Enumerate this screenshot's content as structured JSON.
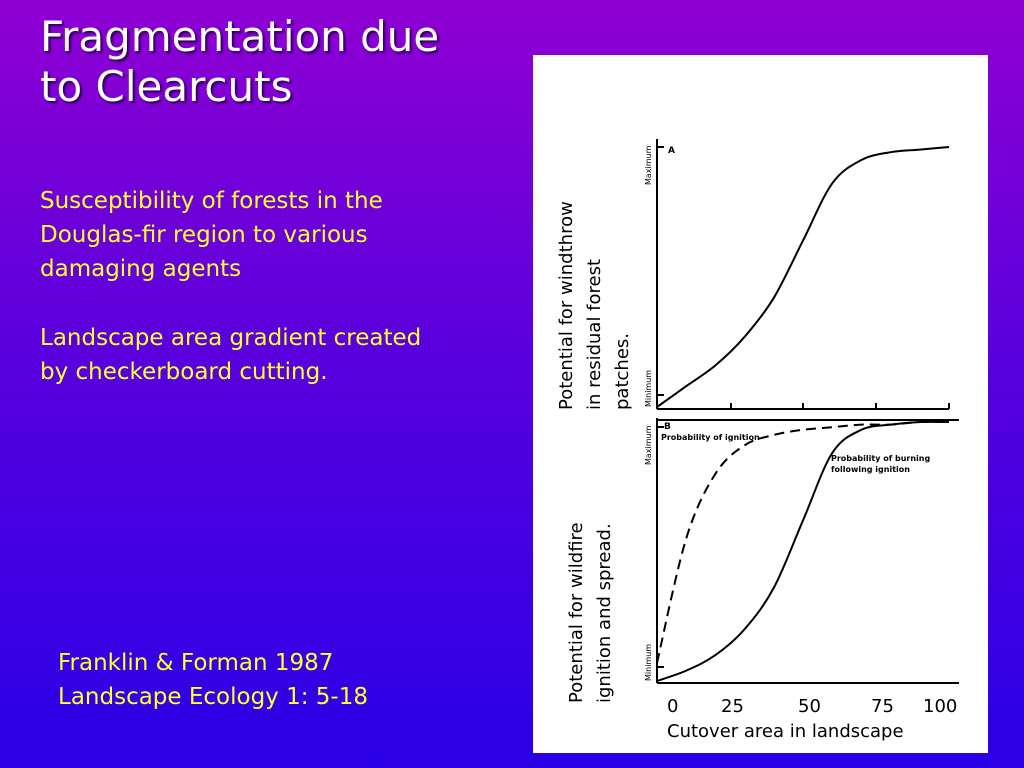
{
  "slide": {
    "title_line1": "Fragmentation due",
    "title_line2": "to Clearcuts",
    "para1_line1": "Susceptibility of forests in the",
    "para1_line2": "Douglas-fir region to various",
    "para1_line3": "damaging agents",
    "para2_line1": "Landscape area gradient created",
    "para2_line2": "by checkerboard cutting.",
    "cite_line1": "Franklin & Forman 1987",
    "cite_line2": "Landscape Ecology 1: 5-18"
  },
  "chart_data": [
    {
      "type": "line",
      "panel": "A",
      "ylabel_lines": [
        "Potential for windthrow",
        "in residual forest",
        "patches."
      ],
      "ytick_max": "Maximum",
      "ytick_min": "Minimum",
      "x": [
        0,
        10,
        20,
        30,
        40,
        50,
        60,
        70,
        80,
        90,
        100
      ],
      "series": [
        {
          "values": [
            0.0,
            0.08,
            0.16,
            0.27,
            0.42,
            0.64,
            0.86,
            0.95,
            0.98,
            0.99,
            1.0
          ]
        }
      ]
    },
    {
      "type": "line",
      "panel": "B",
      "ylabel_lines": [
        "Potential for wildfire",
        "ignition and spread."
      ],
      "ytick_max": "Maximum",
      "ytick_min": "Minimum",
      "xticks": [
        "0",
        "25",
        "50",
        "75",
        "100"
      ],
      "xlabel": "Cutover area in landscape",
      "x": [
        0,
        10,
        20,
        30,
        40,
        50,
        60,
        70,
        80,
        90,
        100
      ],
      "series": [
        {
          "name": "Probability of ignition",
          "style": "dashed",
          "values": [
            0.07,
            0.55,
            0.8,
            0.91,
            0.95,
            0.97,
            0.98,
            0.99,
            0.99,
            1.0,
            1.0
          ]
        },
        {
          "name": "Probability of burning following ignition",
          "style": "solid",
          "values": [
            0.0,
            0.04,
            0.1,
            0.2,
            0.36,
            0.62,
            0.88,
            0.97,
            0.99,
            1.0,
            1.0
          ]
        }
      ]
    }
  ]
}
